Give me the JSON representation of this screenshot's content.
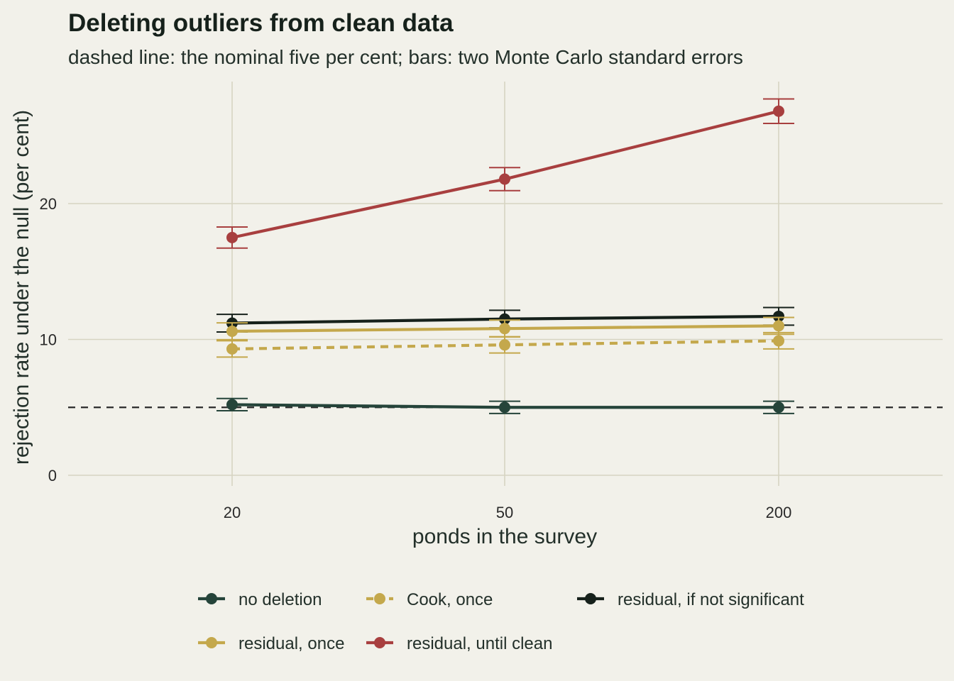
{
  "chart_data": {
    "type": "line",
    "title": "Deleting outliers from clean data",
    "subtitle": "dashed line: the nominal five per cent; bars: two Monte Carlo standard errors",
    "xlabel": "ponds in the survey",
    "ylabel": "rejection rate under the null (per cent)",
    "categories": [
      "20",
      "50",
      "200"
    ],
    "yticks": [
      "0",
      "10",
      "20"
    ],
    "ylim": [
      -1,
      29
    ],
    "reference_line": 5,
    "grid": true,
    "legend_position": "bottom",
    "series": [
      {
        "name": "no deletion",
        "values": [
          5.2,
          5.0,
          5.0
        ],
        "errors": [
          0.45,
          0.45,
          0.45
        ],
        "color": "#25443a",
        "dash": false
      },
      {
        "name": "Cook, once",
        "values": [
          9.3,
          9.6,
          9.9
        ],
        "errors": [
          0.6,
          0.6,
          0.6
        ],
        "color": "#c4a84c",
        "dash": true
      },
      {
        "name": "residual, if not significant",
        "values": [
          11.2,
          11.5,
          11.7
        ],
        "errors": [
          0.65,
          0.65,
          0.65
        ],
        "color": "#16211b",
        "dash": false
      },
      {
        "name": "residual, once",
        "values": [
          10.6,
          10.8,
          11.0
        ],
        "errors": [
          0.62,
          0.62,
          0.62
        ],
        "color": "#c4a84c",
        "dash": false
      },
      {
        "name": "residual, until clean",
        "values": [
          17.5,
          21.8,
          26.8
        ],
        "errors": [
          0.78,
          0.85,
          0.9
        ],
        "color": "#a83f3f",
        "dash": false
      }
    ]
  }
}
